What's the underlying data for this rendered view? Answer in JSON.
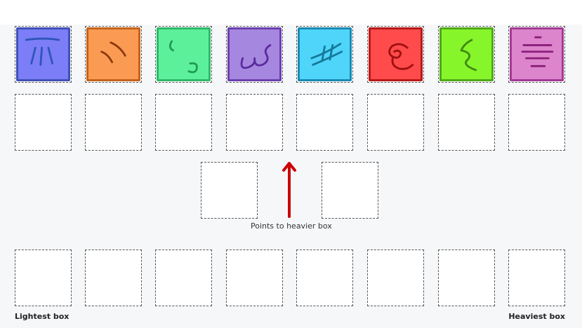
{
  "boxes": [
    {
      "fill": "#7b7ef7",
      "border": "#3f51b5",
      "stroke": "#2f55b8",
      "icon": "rays-icon"
    },
    {
      "fill": "#fb9a52",
      "border": "#c4621a",
      "stroke": "#8a3a10",
      "icon": "slash-marks-icon"
    },
    {
      "fill": "#5cf09a",
      "border": "#2fb86a",
      "stroke": "#1f9a52",
      "icon": "curves-icon"
    },
    {
      "fill": "#a687df",
      "border": "#6a3fb0",
      "stroke": "#5a2a9e",
      "icon": "squiggle-icon"
    },
    {
      "fill": "#4fd5fa",
      "border": "#1a8ab0",
      "stroke": "#157a9a",
      "icon": "hash-icon"
    },
    {
      "fill": "#ff4b4b",
      "border": "#b81818",
      "stroke": "#a01010",
      "icon": "spiral-icon"
    },
    {
      "fill": "#86f52a",
      "border": "#4fa81a",
      "stroke": "#3f8a10",
      "icon": "s-curve-icon"
    },
    {
      "fill": "#dd85cc",
      "border": "#a33a93",
      "stroke": "#8a1f7a",
      "icon": "lines-icon"
    }
  ],
  "comparison": {
    "caption": "Points to heavier box",
    "arrow_color": "#cc0000",
    "arrow_icon": "arrow-up-icon"
  },
  "ranking": {
    "lightest_label": "Lightest box",
    "heaviest_label": "Heaviest box"
  }
}
